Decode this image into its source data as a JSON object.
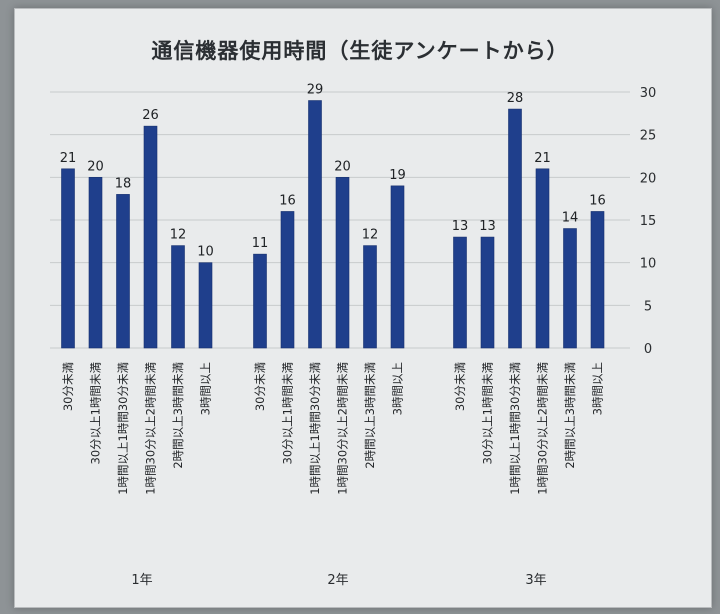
{
  "chart_data": {
    "type": "bar",
    "title": "通信機器使用時間（生徒アンケートから）",
    "ylim": [
      0,
      30
    ],
    "yticks": [
      0,
      5,
      10,
      15,
      20,
      25,
      30
    ],
    "grid": true,
    "colors": {
      "bar": "#1f3f8c",
      "background": "#e9ebec"
    },
    "groups": [
      {
        "name": "1年",
        "categories": [
          "30分未満",
          "30分以上1時間未満",
          "1時間以上1時間30分未満",
          "1時間30分以上2時間未満",
          "2時間以上3時間未満",
          "3時間以上"
        ],
        "values": [
          21,
          20,
          18,
          26,
          12,
          10
        ]
      },
      {
        "name": "2年",
        "categories": [
          "30分未満",
          "30分以上1時間未満",
          "1時間以上1時間30分未満",
          "1時間30分以上2時間未満",
          "2時間以上3時間未満",
          "3時間以上"
        ],
        "values": [
          11,
          16,
          29,
          20,
          12,
          19
        ]
      },
      {
        "name": "3年",
        "categories": [
          "30分未満",
          "30分以上1時間未満",
          "1時間以上1時間30分未満",
          "1時間30分以上2時間未満",
          "2時間以上3時間未満",
          "3時間以上"
        ],
        "values": [
          13,
          13,
          28,
          21,
          14,
          16
        ]
      }
    ]
  }
}
